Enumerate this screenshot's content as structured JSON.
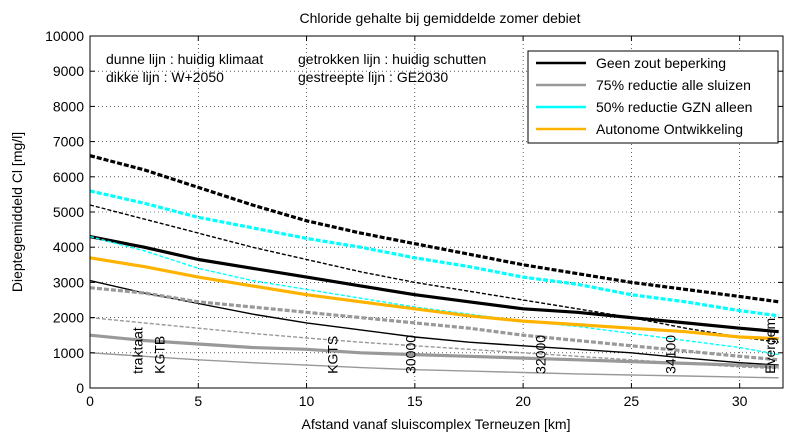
{
  "chart_data": {
    "type": "line",
    "title": "Chloride gehalte bij gemiddelde zomer debiet",
    "xlabel": "Afstand vanaf sluiscomplex Terneuzen [km]",
    "ylabel": "Dieptegemiddeld Cl [mg/l]",
    "xlim": [
      0,
      32
    ],
    "ylim": [
      0,
      10000
    ],
    "xticks": [
      0,
      5,
      10,
      15,
      20,
      25,
      30
    ],
    "yticks": [
      0,
      1000,
      2000,
      3000,
      4000,
      5000,
      6000,
      7000,
      8000,
      9000,
      10000
    ],
    "grid": true,
    "notes": [
      "dunne lijn : huidig klimaat",
      "dikke lijn : W+2050",
      "getrokken lijn : huidig schutten",
      "gestreepte lijn : GE2030"
    ],
    "legend": {
      "placement": "top-right",
      "entries": [
        {
          "name": "Geen zout beperking",
          "color": "#000000"
        },
        {
          "name": "75% reductie alle sluizen",
          "color": "#999999"
        },
        {
          "name": "50% reductie GZN alleen",
          "color": "#00ffff"
        },
        {
          "name": "Autonome Ontwikkeling",
          "color": "#ffb300"
        }
      ]
    },
    "location_labels": [
      {
        "text": "traktaat",
        "x": 2.2
      },
      {
        "text": "KGTB",
        "x": 3.2
      },
      {
        "text": "KGTS",
        "x": 11.2
      },
      {
        "text": "30000",
        "x": 14.8
      },
      {
        "text": "32000",
        "x": 20.8
      },
      {
        "text": "34100",
        "x": 26.8
      },
      {
        "text": "Evergem",
        "x": 31.4
      }
    ],
    "x": [
      0,
      2.5,
      5,
      7.5,
      10,
      12.5,
      15,
      17.5,
      20,
      22.5,
      25,
      27.5,
      30,
      31.8
    ],
    "series": [
      {
        "group": "Geen zout beperking",
        "climate": "W+2050",
        "style": "solid",
        "color": "#000000",
        "values": [
          4300,
          4000,
          3650,
          3400,
          3150,
          2900,
          2650,
          2450,
          2250,
          2150,
          2000,
          1850,
          1700,
          1600
        ]
      },
      {
        "group": "Geen zout beperking",
        "climate": "W+2050",
        "style": "dashed",
        "color": "#000000",
        "values": [
          6600,
          6200,
          5700,
          5200,
          4750,
          4400,
          4100,
          3800,
          3500,
          3250,
          3000,
          2800,
          2600,
          2450
        ]
      },
      {
        "group": "Geen zout beperking",
        "climate": "huidig klimaat",
        "style": "solid",
        "color": "#000000",
        "values": [
          3050,
          2700,
          2400,
          2100,
          1850,
          1650,
          1450,
          1300,
          1200,
          1100,
          1000,
          850,
          720,
          650
        ]
      },
      {
        "group": "Geen zout beperking",
        "climate": "huidig klimaat",
        "style": "dashed",
        "color": "#000000",
        "values": [
          5200,
          4800,
          4400,
          4000,
          3650,
          3300,
          3000,
          2750,
          2500,
          2250,
          2000,
          1700,
          1450,
          1300
        ]
      },
      {
        "group": "75% reductie alle sluizen",
        "climate": "W+2050",
        "style": "solid",
        "color": "#999999",
        "values": [
          1500,
          1350,
          1250,
          1150,
          1100,
          1000,
          950,
          900,
          850,
          800,
          750,
          700,
          650,
          600
        ]
      },
      {
        "group": "75% reductie alle sluizen",
        "climate": "W+2050",
        "style": "dashed",
        "color": "#999999",
        "values": [
          2850,
          2700,
          2450,
          2300,
          2150,
          2000,
          1850,
          1700,
          1500,
          1350,
          1200,
          1050,
          900,
          800
        ]
      },
      {
        "group": "75% reductie alle sluizen",
        "climate": "huidig klimaat",
        "style": "solid",
        "color": "#999999",
        "values": [
          1000,
          900,
          800,
          720,
          650,
          580,
          520,
          480,
          440,
          400,
          370,
          340,
          310,
          290
        ]
      },
      {
        "group": "75% reductie alle sluizen",
        "climate": "huidig klimaat",
        "style": "dashed",
        "color": "#999999",
        "values": [
          2000,
          1850,
          1700,
          1550,
          1420,
          1300,
          1200,
          1100,
          1000,
          900,
          800,
          700,
          600,
          550
        ]
      },
      {
        "group": "50% reductie GZN alleen",
        "climate": "W+2050",
        "style": "dashed",
        "color": "#00ffff",
        "values": [
          5600,
          5250,
          4850,
          4550,
          4250,
          4000,
          3700,
          3450,
          3150,
          2950,
          2650,
          2450,
          2200,
          2050
        ]
      },
      {
        "group": "50% reductie GZN alleen",
        "climate": "huidig klimaat",
        "style": "dashed",
        "color": "#00ffff",
        "values": [
          4300,
          3900,
          3400,
          3050,
          2800,
          2550,
          2300,
          2100,
          1900,
          1750,
          1550,
          1350,
          1150,
          950
        ]
      },
      {
        "group": "Autonome Ontwikkeling",
        "climate": "W+2050",
        "style": "solid",
        "color": "#ffb300",
        "values": [
          3700,
          3450,
          3150,
          2900,
          2650,
          2450,
          2250,
          2050,
          1900,
          1800,
          1700,
          1600,
          1450,
          1400
        ]
      }
    ]
  }
}
